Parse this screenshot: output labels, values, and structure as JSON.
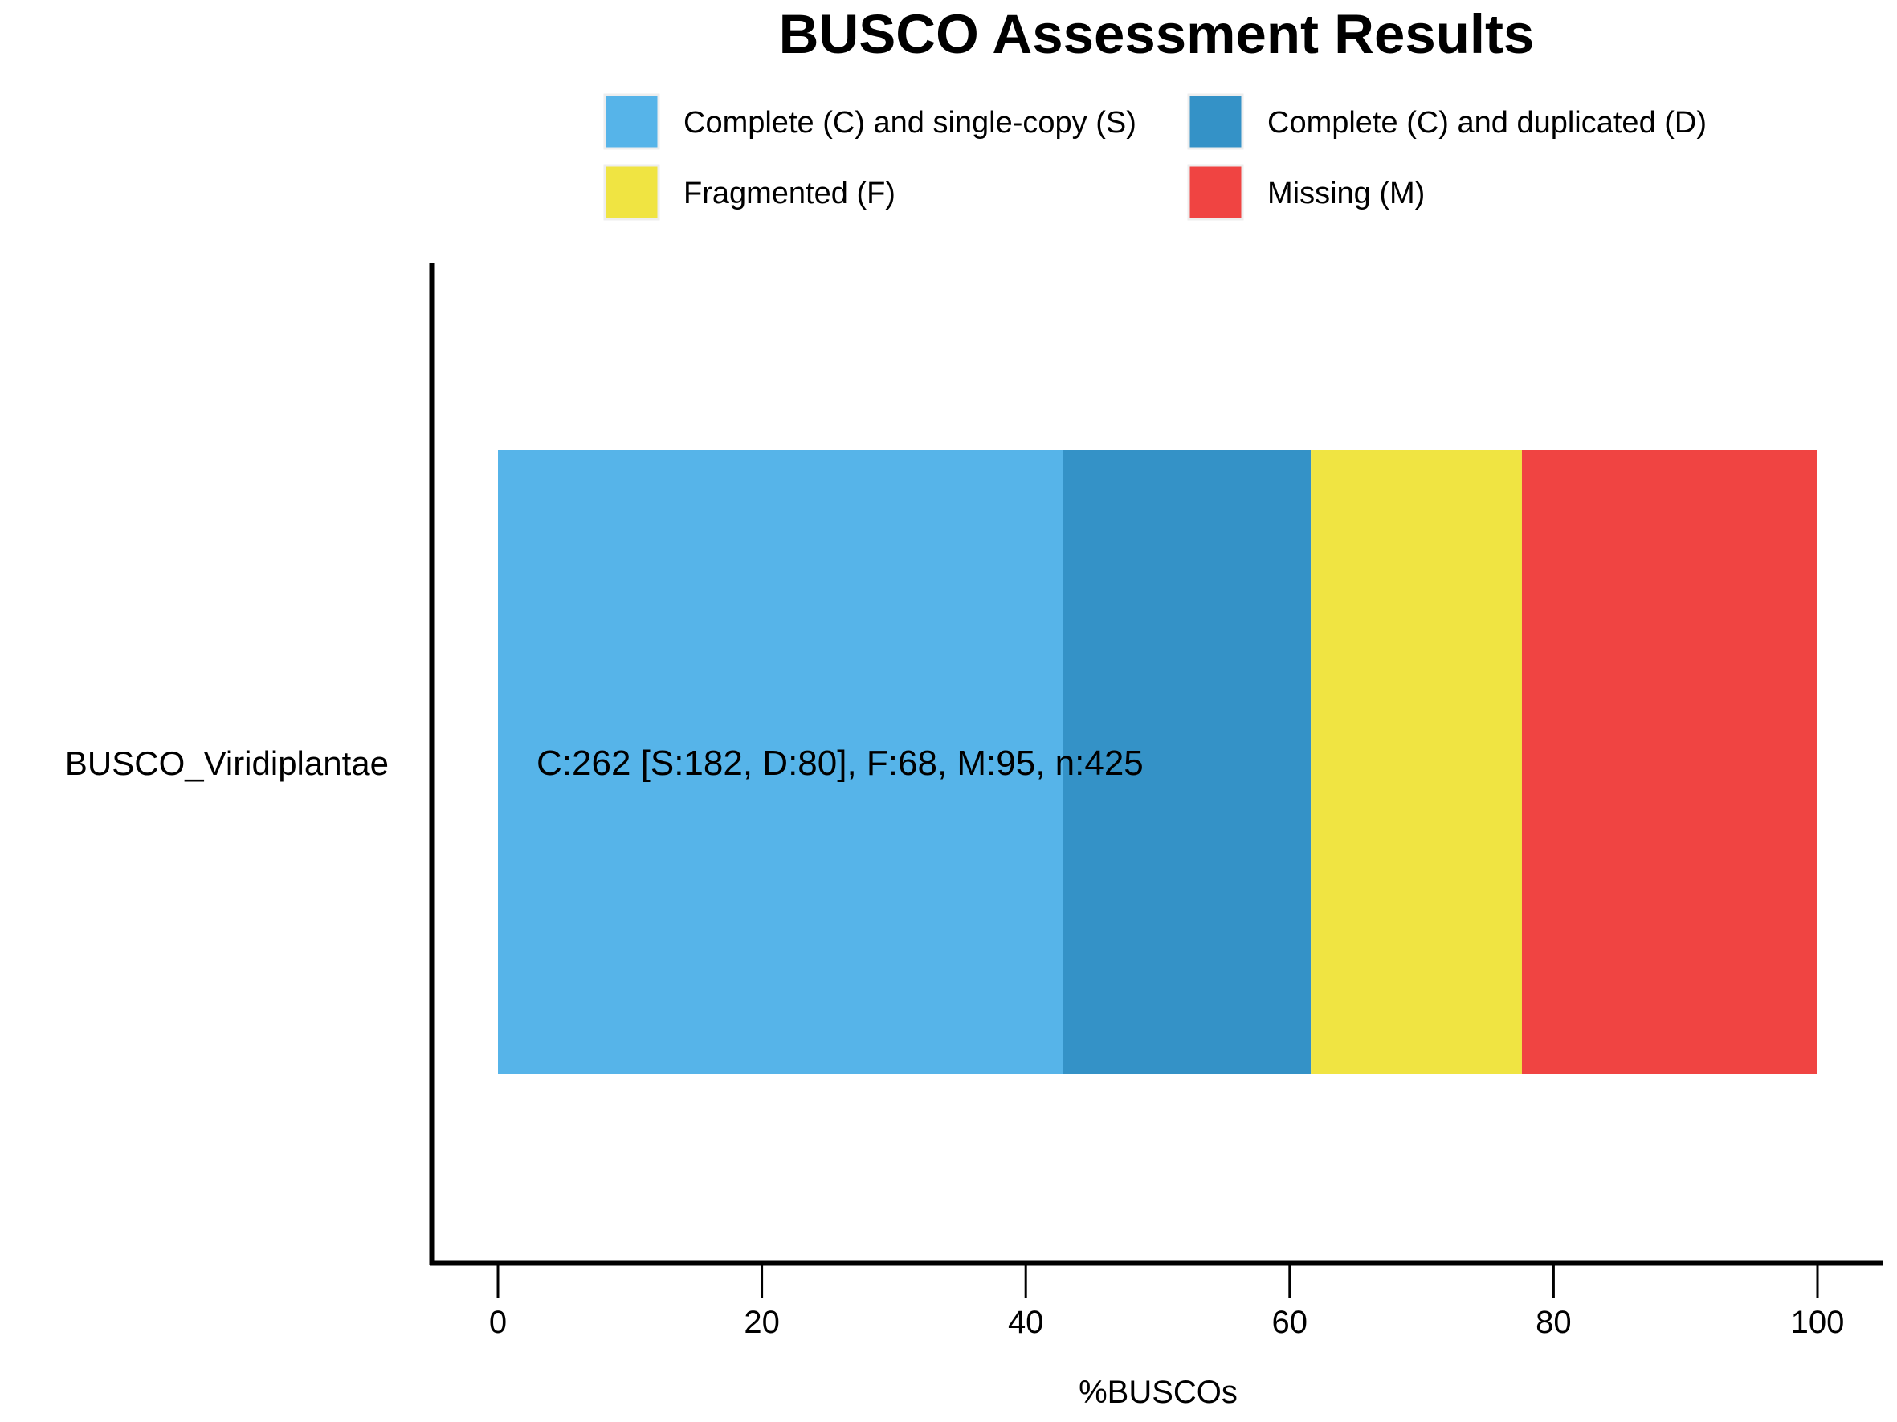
{
  "chart_data": {
    "type": "bar",
    "orientation": "horizontal",
    "stacked": true,
    "title": "BUSCO Assessment Results",
    "xlabel": "%BUSCOs",
    "ylabel": "",
    "xlim": [
      0,
      100
    ],
    "x_ticks": [
      "0",
      "20",
      "40",
      "60",
      "80",
      "100"
    ],
    "categories": [
      "BUSCO_Viridiplantae"
    ],
    "series": [
      {
        "name": "Complete (C) and single-copy (S)",
        "values": [
          42.8
        ],
        "color": "#56b4e9"
      },
      {
        "name": "Complete (C) and duplicated (D)",
        "values": [
          18.8
        ],
        "color": "#3492c7"
      },
      {
        "name": "Fragmented (F)",
        "values": [
          16.0
        ],
        "color": "#f0e442"
      },
      {
        "name": "Missing (M)",
        "values": [
          22.4
        ],
        "color": "#f04442"
      }
    ],
    "bar_annotation": "C:262 [S:182, D:80], F:68, M:95, n:425",
    "legend_position": "top",
    "grid": false
  }
}
